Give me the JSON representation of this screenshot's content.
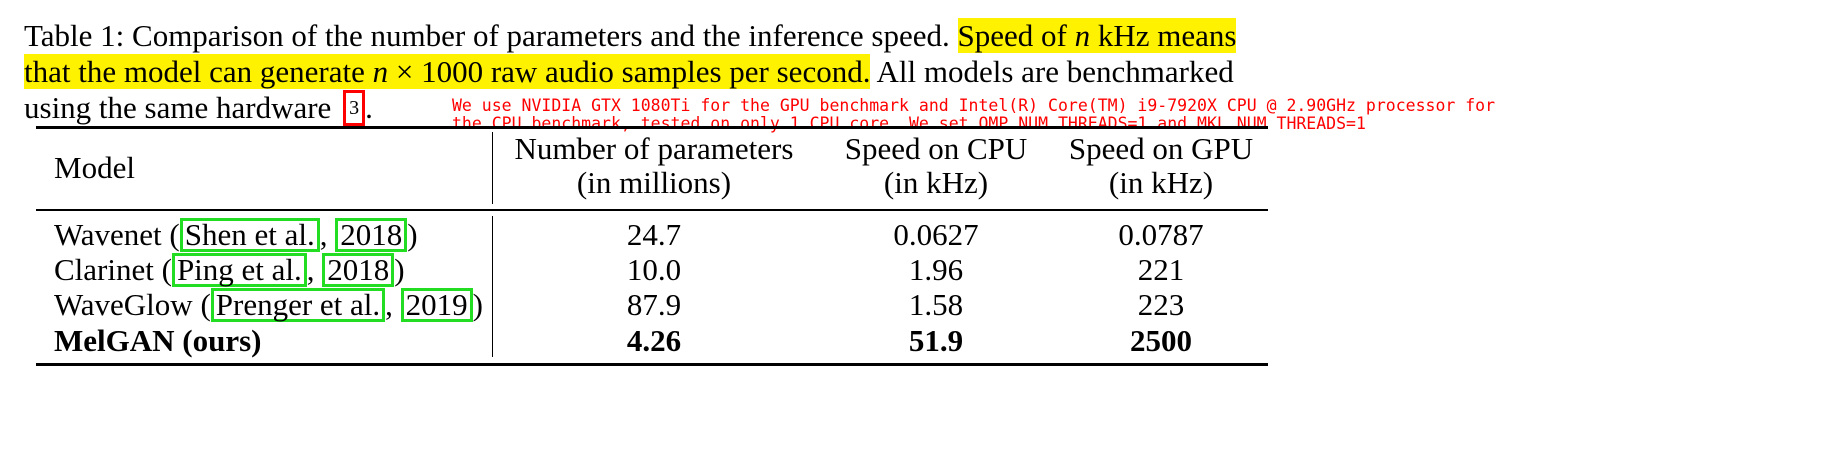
{
  "caption": {
    "label": "Table 1:",
    "text_1": "Comparison of the number of parameters and the inference speed.",
    "highlight_1": "Speed of",
    "highlight_var": "n",
    "highlight_2": "kHz means",
    "highlight_3": "that the model can generate",
    "highlight_var_2": "n",
    "highlight_4": "× 1000 raw audio samples per second.",
    "text_2": "All models are benchmarked",
    "text_3": "using the same hardware",
    "footnote_ref": "3",
    "footnote_period": "."
  },
  "footnote": {
    "line_1": "We use NVIDIA GTX 1080Ti for the GPU benchmark and Intel(R) Core(TM) i9-7920X CPU @ 2.90GHz processor for",
    "line_2": "the CPU benchmark, tested on only 1 CPU core. We set OMP NUM THREADS=1 and MKL NUM THREADS=1"
  },
  "table": {
    "headers": {
      "model": "Model",
      "params_1": "Number of parameters",
      "params_2": "(in millions)",
      "cpu_1": "Speed on CPU",
      "cpu_2": "(in kHz)",
      "gpu_1": "Speed on GPU",
      "gpu_2": "(in kHz)"
    },
    "rows": [
      {
        "model": "Wavenet",
        "cite_author": "Shen et al.",
        "cite_year": "2018",
        "params": "24.7",
        "cpu": "0.0627",
        "gpu": "0.0787"
      },
      {
        "model": "Clarinet",
        "cite_author": "Ping et al.",
        "cite_year": "2018",
        "params": "10.0",
        "cpu": "1.96",
        "gpu": "221"
      },
      {
        "model": "WaveGlow",
        "cite_author": "Prenger et al.",
        "cite_year": "2019",
        "params": "87.9",
        "cpu": "1.58",
        "gpu": "223"
      },
      {
        "model": "MelGAN (ours)",
        "params": "4.26",
        "cpu": "51.9",
        "gpu": "2500"
      }
    ]
  }
}
